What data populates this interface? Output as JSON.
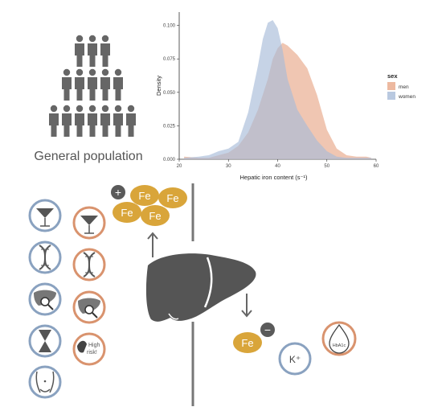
{
  "population_label": "General population",
  "chart_data": {
    "type": "area",
    "xlabel": "Hepatic iron content",
    "xlabel_unit": "(s⁻¹)",
    "ylabel": "Density",
    "xlim": [
      20,
      60
    ],
    "ylim": [
      0,
      0.11
    ],
    "x_ticks": [
      "20",
      "30",
      "40",
      "50",
      "60"
    ],
    "y_ticks": [
      "0.000",
      "0.025",
      "0.050",
      "0.075",
      "0.100"
    ],
    "legend_title": "sex",
    "legend_position": "right",
    "series": [
      {
        "name": "men",
        "color": "#e8a888",
        "x": [
          21,
          24,
          26,
          28,
          30,
          32,
          34,
          36,
          38,
          39,
          40,
          41,
          42,
          44,
          46,
          48,
          50,
          52,
          54,
          56,
          58,
          59
        ],
        "y": [
          0.002,
          0.001,
          0.001,
          0.003,
          0.005,
          0.01,
          0.02,
          0.037,
          0.06,
          0.075,
          0.083,
          0.087,
          0.085,
          0.078,
          0.068,
          0.048,
          0.022,
          0.008,
          0.003,
          0.002,
          0.002,
          0.001
        ]
      },
      {
        "name": "women",
        "color": "#a8bcd8",
        "x": [
          21,
          24,
          26,
          28,
          30,
          32,
          34,
          36,
          37,
          38,
          39,
          40,
          41,
          42,
          44,
          46,
          48,
          50,
          52,
          54,
          56,
          59
        ],
        "y": [
          0.001,
          0.002,
          0.003,
          0.006,
          0.008,
          0.013,
          0.035,
          0.07,
          0.09,
          0.102,
          0.104,
          0.098,
          0.082,
          0.06,
          0.037,
          0.025,
          0.014,
          0.006,
          0.002,
          0.001,
          0.001,
          0.001
        ]
      }
    ]
  },
  "fe_label": "Fe",
  "plus_sign": "+",
  "minus_sign": "−",
  "risk_text_1": "High",
  "risk_text_2": "risk!",
  "potassium_label": "K⁺",
  "hba1c_label": "HbA1c",
  "colors": {
    "gray": "#5a5a5a",
    "blue_ring": "#8aa2c0",
    "orange_ring": "#d9936e",
    "gold": "#d9a53a"
  }
}
